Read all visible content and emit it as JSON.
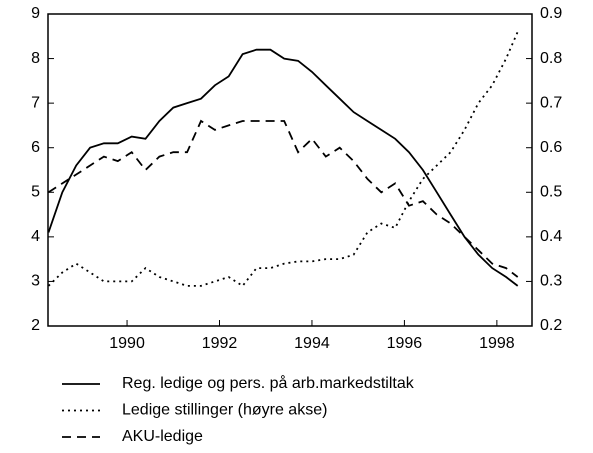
{
  "chart_data": {
    "type": "line",
    "x": [
      1988.3,
      1988.6,
      1988.9,
      1989.2,
      1989.5,
      1989.8,
      1990.1,
      1990.4,
      1990.7,
      1991.0,
      1991.3,
      1991.6,
      1991.9,
      1992.2,
      1992.5,
      1992.8,
      1993.1,
      1993.4,
      1993.7,
      1994.0,
      1994.3,
      1994.6,
      1994.9,
      1995.2,
      1995.5,
      1995.8,
      1996.1,
      1996.4,
      1996.7,
      1997.0,
      1997.3,
      1997.6,
      1997.9,
      1998.2,
      1998.45
    ],
    "series": [
      {
        "name": "Reg. ledige og pers. på arb.markedstiltak",
        "color": "#000000",
        "style": "solid",
        "values": [
          4.1,
          5.0,
          5.6,
          6.0,
          6.1,
          6.1,
          6.25,
          6.2,
          6.6,
          6.9,
          7.0,
          7.1,
          7.4,
          7.6,
          8.1,
          8.2,
          8.2,
          8.0,
          7.95,
          7.7,
          7.4,
          7.1,
          6.8,
          6.6,
          6.4,
          6.2,
          5.9,
          5.5,
          5.0,
          4.5,
          4.0,
          3.6,
          3.3,
          3.1,
          2.9
        ]
      },
      {
        "name": "Ledige stillinger (høyre akse)",
        "color": "#000000",
        "style": "dotted",
        "axis": "y2",
        "values": [
          0.29,
          0.32,
          0.34,
          0.32,
          0.3,
          0.3,
          0.3,
          0.33,
          0.31,
          0.3,
          0.29,
          0.29,
          0.3,
          0.31,
          0.29,
          0.33,
          0.33,
          0.34,
          0.345,
          0.345,
          0.35,
          0.35,
          0.36,
          0.41,
          0.43,
          0.42,
          0.48,
          0.53,
          0.56,
          0.59,
          0.64,
          0.7,
          0.74,
          0.8,
          0.86
        ]
      },
      {
        "name": "AKU-ledige",
        "color": "#000000",
        "style": "dashed",
        "values": [
          5.0,
          5.2,
          5.4,
          5.6,
          5.8,
          5.7,
          5.9,
          5.5,
          5.8,
          5.9,
          5.9,
          6.6,
          6.4,
          6.5,
          6.6,
          6.6,
          6.6,
          6.6,
          5.9,
          6.2,
          5.8,
          6.0,
          5.7,
          5.3,
          5.0,
          5.2,
          4.7,
          4.8,
          4.5,
          4.3,
          4.0,
          3.7,
          3.4,
          3.3,
          3.1
        ]
      }
    ],
    "xlim": [
      1988.29,
      1998.76
    ],
    "xticks": [
      1990,
      1992,
      1994,
      1996,
      1998
    ],
    "ylim": [
      2,
      9
    ],
    "yticks": [
      2,
      3,
      4,
      5,
      6,
      7,
      8,
      9
    ],
    "y2lim": [
      0.2,
      0.9
    ],
    "y2ticks": [
      0.2,
      0.3,
      0.4,
      0.5,
      0.6,
      0.7,
      0.8,
      0.9
    ],
    "grid": false,
    "legend": "bottom"
  }
}
